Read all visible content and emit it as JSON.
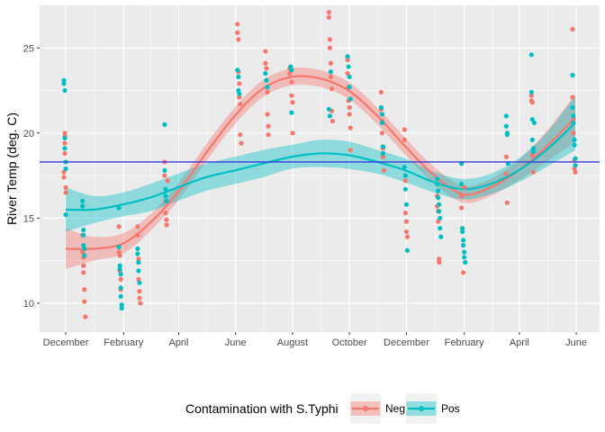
{
  "chart_data": {
    "type": "scatter",
    "title": "",
    "xlabel": "",
    "ylabel": "River Temp (deg. C)",
    "ylim": [
      8.3,
      27.5
    ],
    "xlim": [
      "2017-11-03",
      "2019-06-26"
    ],
    "y_ticks": [
      10,
      15,
      20,
      25
    ],
    "x_ticks": [
      {
        "date": "2017-12-01",
        "label": "December"
      },
      {
        "date": "2018-02-01",
        "label": "February"
      },
      {
        "date": "2018-04-01",
        "label": "April"
      },
      {
        "date": "2018-06-01",
        "label": "June"
      },
      {
        "date": "2018-08-01",
        "label": "August"
      },
      {
        "date": "2018-10-01",
        "label": "October"
      },
      {
        "date": "2018-12-01",
        "label": "December"
      },
      {
        "date": "2019-02-01",
        "label": "February"
      },
      {
        "date": "2019-04-01",
        "label": "April"
      },
      {
        "date": "2019-06-01",
        "label": "June"
      }
    ],
    "hline": {
      "y": 18.3,
      "color": "#3a3ae0"
    },
    "grid": true,
    "legend": {
      "title": "Contamination with S.Typhi",
      "position": "bottom"
    },
    "series": [
      {
        "name": "Neg",
        "color": "#F8766D",
        "points": [
          [
            "2017-11-29",
            17.7
          ],
          [
            "2017-11-29",
            17.4
          ],
          [
            "2017-11-30",
            19.8
          ],
          [
            "2017-11-30",
            20.0
          ],
          [
            "2017-11-30",
            19.4
          ],
          [
            "2017-11-30",
            18.8
          ],
          [
            "2017-12-01",
            16.8
          ],
          [
            "2017-12-01",
            16.5
          ],
          [
            "2017-12-19",
            14.0
          ],
          [
            "2017-12-19",
            13.0
          ],
          [
            "2017-12-20",
            12.7
          ],
          [
            "2017-12-20",
            12.2
          ],
          [
            "2017-12-20",
            11.8
          ],
          [
            "2017-12-21",
            10.8
          ],
          [
            "2017-12-21",
            10.1
          ],
          [
            "2017-12-22",
            9.2
          ],
          [
            "2018-01-27",
            14.5
          ],
          [
            "2018-01-27",
            13.0
          ],
          [
            "2018-01-28",
            12.8
          ],
          [
            "2018-01-28",
            11.9
          ],
          [
            "2018-01-29",
            11.4
          ],
          [
            "2018-01-29",
            10.8
          ],
          [
            "2018-02-16",
            14.5
          ],
          [
            "2018-02-16",
            14.0
          ],
          [
            "2018-02-17",
            12.6
          ],
          [
            "2018-02-17",
            11.4
          ],
          [
            "2018-02-18",
            10.7
          ],
          [
            "2018-02-18",
            10.3
          ],
          [
            "2018-02-19",
            10.0
          ],
          [
            "2018-03-17",
            18.3
          ],
          [
            "2018-03-17",
            17.5
          ],
          [
            "2018-03-18",
            16.0
          ],
          [
            "2018-03-18",
            15.3
          ],
          [
            "2018-03-19",
            14.9
          ],
          [
            "2018-03-19",
            14.6
          ],
          [
            "2018-03-20",
            17.2
          ],
          [
            "2018-06-03",
            26.4
          ],
          [
            "2018-06-03",
            25.9
          ],
          [
            "2018-06-04",
            25.5
          ],
          [
            "2018-06-04",
            23.6
          ],
          [
            "2018-06-05",
            22.9
          ],
          [
            "2018-06-05",
            22.1
          ],
          [
            "2018-06-06",
            21.7
          ],
          [
            "2018-06-06",
            19.9
          ],
          [
            "2018-06-07",
            19.4
          ],
          [
            "2018-07-03",
            24.8
          ],
          [
            "2018-07-03",
            24.1
          ],
          [
            "2018-07-04",
            23.8
          ],
          [
            "2018-07-04",
            23.1
          ],
          [
            "2018-07-05",
            22.4
          ],
          [
            "2018-07-05",
            21.1
          ],
          [
            "2018-07-06",
            20.4
          ],
          [
            "2018-07-06",
            19.9
          ],
          [
            "2018-07-29",
            23.8
          ],
          [
            "2018-07-29",
            23.5
          ],
          [
            "2018-07-30",
            23.9
          ],
          [
            "2018-07-31",
            23.0
          ],
          [
            "2018-07-31",
            22.2
          ],
          [
            "2018-08-01",
            21.8
          ],
          [
            "2018-08-01",
            20.0
          ],
          [
            "2018-09-09",
            27.1
          ],
          [
            "2018-09-09",
            26.8
          ],
          [
            "2018-09-10",
            25.5
          ],
          [
            "2018-09-10",
            25.0
          ],
          [
            "2018-09-11",
            24.1
          ],
          [
            "2018-09-11",
            23.3
          ],
          [
            "2018-09-12",
            22.6
          ],
          [
            "2018-09-12",
            21.3
          ],
          [
            "2018-09-13",
            20.7
          ],
          [
            "2018-09-29",
            24.3
          ],
          [
            "2018-09-29",
            23.5
          ],
          [
            "2018-09-30",
            22.7
          ],
          [
            "2018-09-30",
            21.9
          ],
          [
            "2018-10-01",
            21.5
          ],
          [
            "2018-10-01",
            21.1
          ],
          [
            "2018-10-02",
            20.3
          ],
          [
            "2018-10-02",
            19.0
          ],
          [
            "2018-11-04",
            22.4
          ],
          [
            "2018-11-04",
            21.4
          ],
          [
            "2018-11-05",
            20.7
          ],
          [
            "2018-11-05",
            20.0
          ],
          [
            "2018-11-06",
            19.1
          ],
          [
            "2018-11-06",
            18.6
          ],
          [
            "2018-11-07",
            17.8
          ],
          [
            "2018-11-29",
            20.2
          ],
          [
            "2018-11-29",
            19.6
          ],
          [
            "2018-11-30",
            17.2
          ],
          [
            "2018-11-30",
            15.3
          ],
          [
            "2018-12-01",
            14.8
          ],
          [
            "2018-12-01",
            14.2
          ],
          [
            "2018-12-02",
            13.9
          ],
          [
            "2019-01-03",
            16.3
          ],
          [
            "2019-01-03",
            15.7
          ],
          [
            "2019-01-04",
            15.4
          ],
          [
            "2019-01-04",
            14.8
          ],
          [
            "2019-01-05",
            12.6
          ],
          [
            "2019-01-05",
            12.4
          ],
          [
            "2019-01-29",
            16.3
          ],
          [
            "2019-01-29",
            15.6
          ],
          [
            "2019-01-30",
            14.4
          ],
          [
            "2019-01-31",
            13.4
          ],
          [
            "2019-01-31",
            11.8
          ],
          [
            "2019-02-01",
            16.8
          ],
          [
            "2019-03-18",
            18.6
          ],
          [
            "2019-03-18",
            17.6
          ],
          [
            "2019-03-19",
            15.9
          ],
          [
            "2019-04-14",
            22.2
          ],
          [
            "2019-04-14",
            21.9
          ],
          [
            "2019-04-15",
            21.8
          ],
          [
            "2019-04-15",
            18.7
          ],
          [
            "2019-04-16",
            17.7
          ],
          [
            "2019-05-28",
            26.1
          ],
          [
            "2019-05-28",
            22.1
          ],
          [
            "2019-05-29",
            20.8
          ],
          [
            "2019-05-29",
            20.0
          ],
          [
            "2019-05-30",
            18.4
          ],
          [
            "2019-05-30",
            17.9
          ],
          [
            "2019-05-31",
            17.7
          ]
        ],
        "smooth": {
          "x": [
            "2017-12-01",
            "2017-12-31",
            "2018-01-31",
            "2018-03-01",
            "2018-03-31",
            "2018-04-30",
            "2018-05-31",
            "2018-06-30",
            "2018-07-31",
            "2018-08-31",
            "2018-09-30",
            "2018-10-31",
            "2018-11-30",
            "2018-12-31",
            "2019-01-31",
            "2019-03-01",
            "2019-03-31",
            "2019-04-30",
            "2019-05-31"
          ],
          "y": [
            13.2,
            13.2,
            13.5,
            14.7,
            16.5,
            18.8,
            21.0,
            22.6,
            23.3,
            23.2,
            22.5,
            21.0,
            19.2,
            17.5,
            16.4,
            16.8,
            17.8,
            19.2,
            20.9
          ],
          "lower": [
            12.0,
            12.5,
            12.9,
            14.2,
            16.0,
            18.3,
            20.5,
            22.1,
            22.8,
            22.7,
            22.0,
            20.5,
            18.7,
            17.0,
            15.9,
            16.3,
            17.2,
            18.3,
            19.5
          ],
          "upper": [
            14.4,
            13.9,
            14.1,
            15.2,
            17.0,
            19.3,
            21.5,
            23.1,
            23.8,
            23.7,
            23.0,
            21.5,
            19.7,
            18.0,
            16.9,
            17.3,
            18.4,
            20.1,
            22.3
          ]
        }
      },
      {
        "name": "Pos",
        "color": "#00BFC4",
        "points": [
          [
            "2017-11-29",
            23.1
          ],
          [
            "2017-11-29",
            22.9
          ],
          [
            "2017-11-30",
            22.5
          ],
          [
            "2017-11-30",
            19.7
          ],
          [
            "2017-11-30",
            19.1
          ],
          [
            "2017-12-01",
            18.3
          ],
          [
            "2017-12-01",
            15.2
          ],
          [
            "2017-12-01",
            17.9
          ],
          [
            "2017-12-19",
            16.0
          ],
          [
            "2017-12-19",
            15.7
          ],
          [
            "2017-12-20",
            14.3
          ],
          [
            "2017-12-20",
            14.0
          ],
          [
            "2017-12-20",
            13.4
          ],
          [
            "2017-12-21",
            13.2
          ],
          [
            "2017-12-21",
            12.8
          ],
          [
            "2018-01-27",
            15.6
          ],
          [
            "2018-01-27",
            13.3
          ],
          [
            "2018-01-28",
            12.2
          ],
          [
            "2018-01-28",
            12.0
          ],
          [
            "2018-01-29",
            11.7
          ],
          [
            "2018-01-29",
            10.9
          ],
          [
            "2018-01-29",
            10.4
          ],
          [
            "2018-01-30",
            9.9
          ],
          [
            "2018-01-30",
            9.7
          ],
          [
            "2018-02-16",
            13.2
          ],
          [
            "2018-02-16",
            12.9
          ],
          [
            "2018-02-17",
            12.4
          ],
          [
            "2018-02-17",
            11.9
          ],
          [
            "2018-02-18",
            11.2
          ],
          [
            "2018-03-17",
            20.5
          ],
          [
            "2018-03-17",
            17.8
          ],
          [
            "2018-03-18",
            16.7
          ],
          [
            "2018-03-18",
            16.3
          ],
          [
            "2018-03-19",
            16.0
          ],
          [
            "2018-06-03",
            23.7
          ],
          [
            "2018-06-04",
            23.3
          ],
          [
            "2018-06-04",
            22.5
          ],
          [
            "2018-06-05",
            22.3
          ],
          [
            "2018-07-03",
            23.5
          ],
          [
            "2018-07-04",
            23.1
          ],
          [
            "2018-07-05",
            22.7
          ],
          [
            "2018-07-30",
            23.9
          ],
          [
            "2018-07-31",
            23.7
          ],
          [
            "2018-07-31",
            21.2
          ],
          [
            "2018-09-09",
            21.4
          ],
          [
            "2018-09-10",
            21.0
          ],
          [
            "2018-09-11",
            23.6
          ],
          [
            "2018-09-29",
            24.5
          ],
          [
            "2018-09-30",
            23.9
          ],
          [
            "2018-10-01",
            23.3
          ],
          [
            "2018-10-01",
            22.7
          ],
          [
            "2018-10-02",
            22.0
          ],
          [
            "2018-11-04",
            21.5
          ],
          [
            "2018-11-05",
            21.1
          ],
          [
            "2018-11-05",
            20.6
          ],
          [
            "2018-11-06",
            19.2
          ],
          [
            "2018-11-06",
            18.8
          ],
          [
            "2018-11-29",
            18.0
          ],
          [
            "2018-11-30",
            17.5
          ],
          [
            "2018-11-30",
            16.7
          ],
          [
            "2018-12-01",
            15.8
          ],
          [
            "2018-12-02",
            13.1
          ],
          [
            "2019-01-03",
            17.3
          ],
          [
            "2019-01-03",
            17.0
          ],
          [
            "2019-01-04",
            16.6
          ],
          [
            "2019-01-04",
            16.2
          ],
          [
            "2019-01-05",
            15.8
          ],
          [
            "2019-01-05",
            15.4
          ],
          [
            "2019-01-06",
            15.0
          ],
          [
            "2019-01-06",
            14.4
          ],
          [
            "2019-01-07",
            13.9
          ],
          [
            "2019-01-29",
            18.2
          ],
          [
            "2019-01-29",
            17.0
          ],
          [
            "2019-01-30",
            14.4
          ],
          [
            "2019-01-30",
            14.2
          ],
          [
            "2019-01-31",
            13.7
          ],
          [
            "2019-01-31",
            13.4
          ],
          [
            "2019-02-01",
            13.0
          ],
          [
            "2019-02-01",
            12.7
          ],
          [
            "2019-02-02",
            12.4
          ],
          [
            "2019-03-18",
            21.0
          ],
          [
            "2019-03-18",
            20.4
          ],
          [
            "2019-03-19",
            20.0
          ],
          [
            "2019-03-19",
            19.9
          ],
          [
            "2019-03-20",
            18.2
          ],
          [
            "2019-04-14",
            24.6
          ],
          [
            "2019-04-14",
            22.4
          ],
          [
            "2019-04-15",
            20.8
          ],
          [
            "2019-04-15",
            19.6
          ],
          [
            "2019-04-16",
            18.9
          ],
          [
            "2019-04-16",
            19.1
          ],
          [
            "2019-04-17",
            20.6
          ],
          [
            "2019-05-28",
            23.4
          ],
          [
            "2019-05-28",
            21.5
          ],
          [
            "2019-05-29",
            21.0
          ],
          [
            "2019-05-29",
            20.6
          ],
          [
            "2019-05-30",
            19.6
          ],
          [
            "2019-05-30",
            19.3
          ],
          [
            "2019-05-31",
            18.1
          ],
          [
            "2019-05-31",
            18.5
          ]
        ],
        "smooth": {
          "x": [
            "2017-12-01",
            "2017-12-31",
            "2018-01-31",
            "2018-03-01",
            "2018-03-31",
            "2018-04-30",
            "2018-05-31",
            "2018-06-30",
            "2018-07-31",
            "2018-08-31",
            "2018-09-30",
            "2018-10-31",
            "2018-11-30",
            "2018-12-31",
            "2019-01-31",
            "2019-03-01",
            "2019-03-31",
            "2019-04-30",
            "2019-05-31"
          ],
          "y": [
            15.5,
            15.5,
            15.8,
            16.2,
            16.8,
            17.4,
            17.8,
            18.2,
            18.6,
            18.8,
            18.7,
            18.3,
            17.8,
            17.1,
            16.7,
            17.0,
            17.8,
            19.0,
            20.6
          ],
          "lower": [
            14.2,
            14.7,
            15.1,
            15.4,
            16.0,
            16.6,
            17.0,
            17.4,
            17.9,
            18.0,
            17.9,
            17.6,
            17.1,
            16.5,
            16.1,
            16.4,
            17.1,
            18.0,
            19.0
          ],
          "upper": [
            16.8,
            16.3,
            16.5,
            17.0,
            17.6,
            18.2,
            18.6,
            19.0,
            19.3,
            19.6,
            19.5,
            19.0,
            18.5,
            17.7,
            17.3,
            17.6,
            18.5,
            20.0,
            22.2
          ]
        }
      }
    ]
  }
}
